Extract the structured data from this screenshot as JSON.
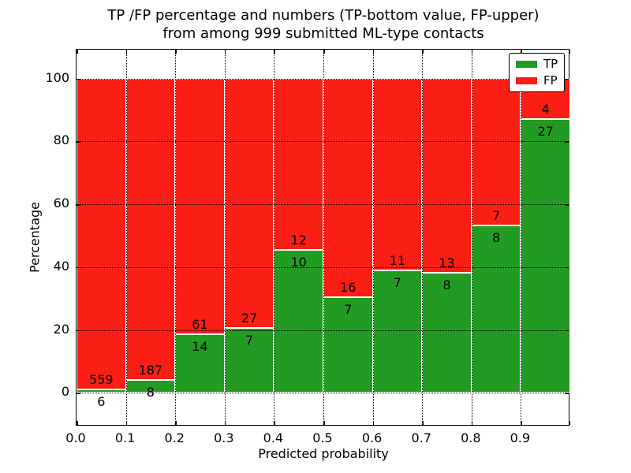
{
  "figure": {
    "title_line1": "TP /FP percentage and numbers (TP-bottom value, FP-upper)",
    "title_line2": "from among 999 submitted ML-type contacts"
  },
  "chart_data": {
    "type": "bar",
    "stacked": true,
    "bar_mode": "percent_stacked_to_100",
    "title": "TP /FP percentage and numbers (TP-bottom value, FP-upper) from among 999 submitted ML-type contacts",
    "xlabel": "Predicted probability",
    "ylabel": "Percentage",
    "total_contacts": 999,
    "categories": [
      "0.0-0.1",
      "0.1-0.2",
      "0.2-0.3",
      "0.3-0.4",
      "0.4-0.5",
      "0.5-0.6",
      "0.6-0.7",
      "0.7-0.8",
      "0.8-0.9",
      "0.9-1.0"
    ],
    "series": [
      {
        "name": "TP",
        "color": "#229b22",
        "values": [
          6,
          8,
          14,
          7,
          10,
          7,
          7,
          8,
          8,
          27
        ]
      },
      {
        "name": "FP",
        "color": "#fa1e14",
        "values": [
          559,
          187,
          61,
          27,
          12,
          16,
          11,
          13,
          7,
          4
        ]
      }
    ],
    "annotations_note": "FP count printed above TP/FP boundary, TP count printed below boundary",
    "x_ticks": [
      "0.0",
      "0.1",
      "0.2",
      "0.3",
      "0.4",
      "0.5",
      "0.6",
      "0.7",
      "0.8",
      "0.9"
    ],
    "y_ticks": [
      0,
      20,
      40,
      60,
      80,
      100
    ],
    "xlim": [
      0,
      1
    ],
    "ylim": [
      -10.7,
      109.2
    ],
    "grid": "dotted",
    "legend": {
      "position": "upper right",
      "items": [
        {
          "label": "TP",
          "color": "#229b22"
        },
        {
          "label": "FP",
          "color": "#fa1e14"
        }
      ]
    }
  }
}
